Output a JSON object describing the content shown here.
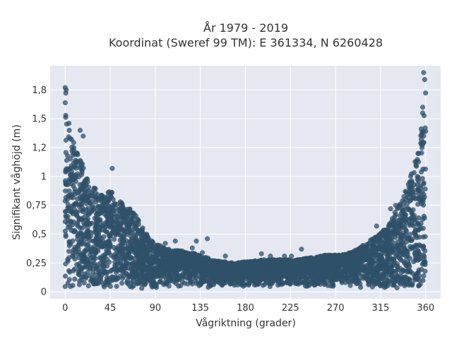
{
  "chart_data": {
    "type": "scatter",
    "title_lines": [
      "År 1979 - 2019",
      "Koordinat (Sweref 99 TM): E 361334, N 6260428"
    ],
    "xlabel": "Vågriktning (grader)",
    "ylabel": "Signifikant våghöjd (m)",
    "xlim": [
      -15,
      375
    ],
    "ylim": [
      -0.06,
      1.96
    ],
    "x_ticks": [
      0,
      45,
      90,
      135,
      180,
      225,
      270,
      315,
      360
    ],
    "x_tick_labels": [
      "0",
      "45",
      "90",
      "135",
      "180",
      "225",
      "270",
      "315",
      "360"
    ],
    "y_ticks": [
      0,
      0.25,
      0.5,
      0.75,
      1,
      1.25,
      1.5,
      1.75
    ],
    "y_tick_labels": [
      "0",
      "0,25",
      "0,5",
      "0,75",
      "1",
      "1,2",
      "1,5",
      "1,8"
    ],
    "grid": true,
    "legend": "none",
    "colors": {
      "marker": "#2f5069",
      "plot_background": "#e5e8f0",
      "grid": "#ffffff"
    },
    "envelope": [
      {
        "x": 0,
        "y": 1.76
      },
      {
        "x": 2,
        "y": 1.65
      },
      {
        "x": 5,
        "y": 1.45
      },
      {
        "x": 10,
        "y": 1.25
      },
      {
        "x": 15,
        "y": 1.15
      },
      {
        "x": 20,
        "y": 1.05
      },
      {
        "x": 25,
        "y": 0.95
      },
      {
        "x": 30,
        "y": 0.9
      },
      {
        "x": 35,
        "y": 0.85
      },
      {
        "x": 40,
        "y": 0.82
      },
      {
        "x": 45,
        "y": 0.9
      },
      {
        "x": 50,
        "y": 0.8
      },
      {
        "x": 55,
        "y": 0.78
      },
      {
        "x": 60,
        "y": 0.75
      },
      {
        "x": 65,
        "y": 0.72
      },
      {
        "x": 70,
        "y": 0.68
      },
      {
        "x": 75,
        "y": 0.6
      },
      {
        "x": 80,
        "y": 0.52
      },
      {
        "x": 85,
        "y": 0.45
      },
      {
        "x": 90,
        "y": 0.42
      },
      {
        "x": 100,
        "y": 0.38
      },
      {
        "x": 110,
        "y": 0.36
      },
      {
        "x": 120,
        "y": 0.35
      },
      {
        "x": 130,
        "y": 0.33
      },
      {
        "x": 140,
        "y": 0.3
      },
      {
        "x": 150,
        "y": 0.27
      },
      {
        "x": 160,
        "y": 0.26
      },
      {
        "x": 170,
        "y": 0.25
      },
      {
        "x": 180,
        "y": 0.26
      },
      {
        "x": 190,
        "y": 0.27
      },
      {
        "x": 200,
        "y": 0.28
      },
      {
        "x": 210,
        "y": 0.28
      },
      {
        "x": 220,
        "y": 0.28
      },
      {
        "x": 230,
        "y": 0.28
      },
      {
        "x": 240,
        "y": 0.29
      },
      {
        "x": 250,
        "y": 0.3
      },
      {
        "x": 260,
        "y": 0.32
      },
      {
        "x": 270,
        "y": 0.32
      },
      {
        "x": 280,
        "y": 0.33
      },
      {
        "x": 290,
        "y": 0.36
      },
      {
        "x": 300,
        "y": 0.42
      },
      {
        "x": 310,
        "y": 0.48
      },
      {
        "x": 320,
        "y": 0.55
      },
      {
        "x": 325,
        "y": 0.62
      },
      {
        "x": 330,
        "y": 0.7
      },
      {
        "x": 335,
        "y": 0.78
      },
      {
        "x": 340,
        "y": 0.88
      },
      {
        "x": 345,
        "y": 1.0
      },
      {
        "x": 350,
        "y": 1.15
      },
      {
        "x": 353,
        "y": 1.25
      },
      {
        "x": 356,
        "y": 1.45
      },
      {
        "x": 358,
        "y": 1.65
      },
      {
        "x": 359,
        "y": 1.78
      },
      {
        "x": 360,
        "y": 1.9
      }
    ],
    "outliers": [
      {
        "x": 0,
        "y": 1.77
      },
      {
        "x": 1,
        "y": 1.75
      },
      {
        "x": 15,
        "y": 1.4
      },
      {
        "x": 18,
        "y": 1.35
      },
      {
        "x": 12,
        "y": 1.2
      },
      {
        "x": 47,
        "y": 1.07
      },
      {
        "x": 66,
        "y": 0.6
      },
      {
        "x": 100,
        "y": 0.42
      },
      {
        "x": 110,
        "y": 0.44
      },
      {
        "x": 127,
        "y": 0.38
      },
      {
        "x": 131,
        "y": 0.44
      },
      {
        "x": 137,
        "y": 0.34
      },
      {
        "x": 142,
        "y": 0.46
      },
      {
        "x": 160,
        "y": 0.31
      },
      {
        "x": 196,
        "y": 0.33
      },
      {
        "x": 205,
        "y": 0.31
      },
      {
        "x": 219,
        "y": 0.31
      },
      {
        "x": 226,
        "y": 0.31
      },
      {
        "x": 236,
        "y": 0.37
      },
      {
        "x": 252,
        "y": 0.3
      },
      {
        "x": 267,
        "y": 0.31
      },
      {
        "x": 278,
        "y": 0.31
      },
      {
        "x": 290,
        "y": 0.32
      },
      {
        "x": 311,
        "y": 0.57
      },
      {
        "x": 325,
        "y": 0.72
      },
      {
        "x": 330,
        "y": 0.75
      },
      {
        "x": 345,
        "y": 1.0
      },
      {
        "x": 353,
        "y": 1.2
      },
      {
        "x": 357,
        "y": 1.55
      },
      {
        "x": 359,
        "y": 1.84
      },
      {
        "x": 358,
        "y": 1.9
      },
      {
        "x": 357,
        "y": 1.6
      }
    ]
  }
}
